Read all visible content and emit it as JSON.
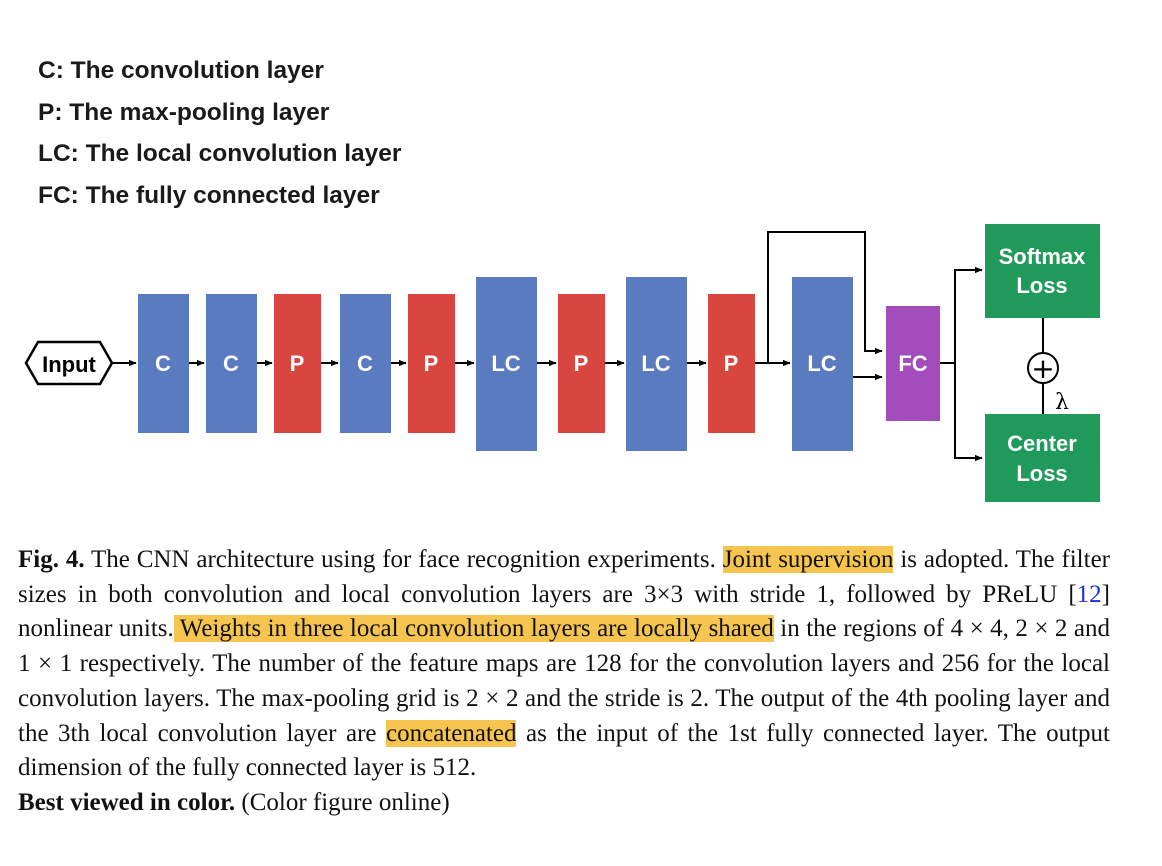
{
  "legend": [
    {
      "text": "C: The convolution layer"
    },
    {
      "text": "P: The max-pooling layer"
    },
    {
      "text": "LC: The local convolution layer"
    },
    {
      "text": "FC: The fully connected layer"
    }
  ],
  "diagram": {
    "input_label": "Input",
    "layers": [
      {
        "label": "C",
        "kind": "conv"
      },
      {
        "label": "C",
        "kind": "conv"
      },
      {
        "label": "P",
        "kind": "pool"
      },
      {
        "label": "C",
        "kind": "conv"
      },
      {
        "label": "P",
        "kind": "pool"
      },
      {
        "label": "LC",
        "kind": "localconv"
      },
      {
        "label": "P",
        "kind": "pool"
      },
      {
        "label": "LC",
        "kind": "localconv"
      },
      {
        "label": "P",
        "kind": "pool"
      },
      {
        "label": "LC",
        "kind": "localconv"
      }
    ],
    "fc_label": "FC",
    "softmax_line1": "Softmax",
    "softmax_line2": "Loss",
    "center_line1": "Center",
    "center_line2": "Loss",
    "plus_symbol": "+",
    "lambda_symbol": "λ",
    "colors": {
      "conv": "#5a7bbf",
      "pool": "#d9453f",
      "fc": "#a24dbb",
      "loss": "#1f9a5a"
    }
  },
  "caption": {
    "fig_label": "Fig. 4.",
    "s1": " The CNN architecture using for face recognition experiments. ",
    "h1": "Joint supervision",
    "s2": " is adopted. The filter sizes in both convolution and local convolution layers are 3×3 with stride 1, followed by PReLU [",
    "ref": "12",
    "s3": "] nonlinear units.",
    "h2": " Weights in three local convolution layers are locally shared",
    "s4": " in the regions of 4 × 4, 2 × 2 and 1 × 1 respectively. The number of the feature maps are 128 for the convolution layers and 256 for the local convolution layers. The max-pooling grid is 2 × 2 and the stride is 2. The output of the 4th pooling layer and the 3th local convolution layer are ",
    "h3": "concatenated",
    "s5": " as the input of the 1st fully connected layer. The output dimension of the fully connected layer is 512.",
    "bold_tail": "Best viewed in color.",
    "tail": " (Color figure online)"
  }
}
